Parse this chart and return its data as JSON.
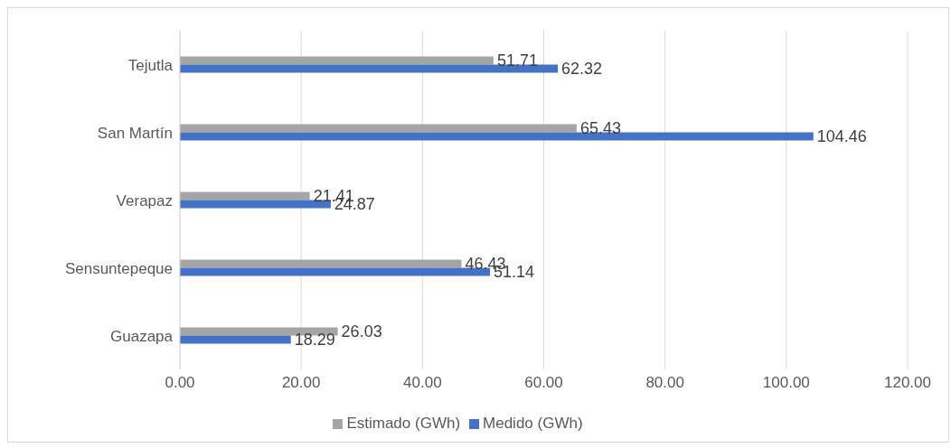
{
  "chart_data": {
    "type": "bar",
    "orientation": "horizontal",
    "categories": [
      "Tejutla",
      "San Martín",
      "Verapaz",
      "Sensuntepeque",
      "Guazapa"
    ],
    "series": [
      {
        "name": "Estimado (GWh)",
        "color": "#a5a5a5",
        "values": [
          51.71,
          65.43,
          21.41,
          46.43,
          26.03
        ]
      },
      {
        "name": "Medido (GWh)",
        "color": "#4472c4",
        "values": [
          62.32,
          104.46,
          24.87,
          51.14,
          18.29
        ]
      }
    ],
    "xlim": [
      0,
      120
    ],
    "xticks": [
      {
        "value": 0,
        "label": "0.00"
      },
      {
        "value": 20,
        "label": "20.00"
      },
      {
        "value": 40,
        "label": "40.00"
      },
      {
        "value": 60,
        "label": "60.00"
      },
      {
        "value": 80,
        "label": "80.00"
      },
      {
        "value": 100,
        "label": "100.00"
      },
      {
        "value": 120,
        "label": "120.00"
      }
    ],
    "grid": "x",
    "legend": "bottom",
    "data_labels": true
  }
}
